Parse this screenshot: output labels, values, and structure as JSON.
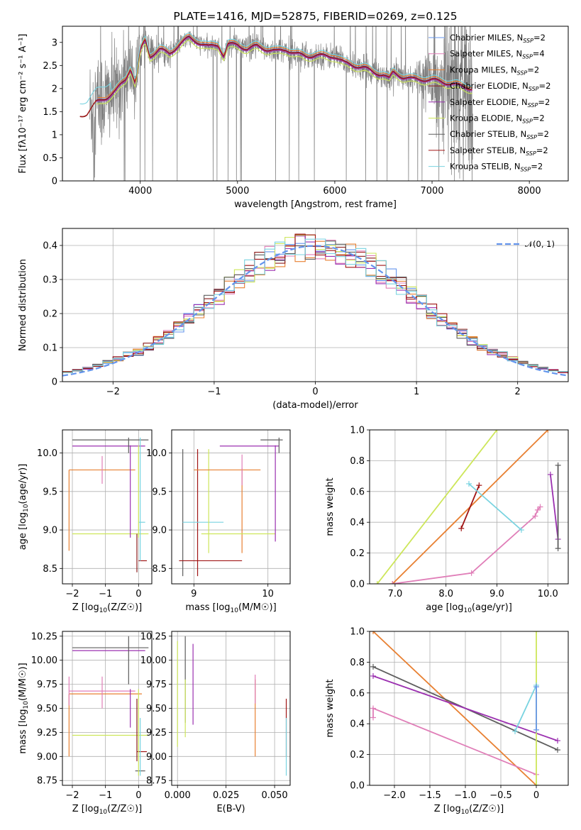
{
  "colors": {
    "Chabrier MILES": "#6495ed",
    "Salpeter MILES": "#e07eb8",
    "Kroupa MILES": "#e88032",
    "Chabrier ELODIE": "#8b1a1a",
    "Salpeter ELODIE": "#9b30b0",
    "Kroupa ELODIE": "#cde65a",
    "Chabrier STELIB": "#5e5e5e",
    "Salpeter STELIB": "#a01515",
    "Kroupa STELIB": "#78d3e0",
    "data": "#808080",
    "normal": "#6495ed",
    "grid": "#b0b0b0"
  },
  "chart_data": [
    {
      "type": "line",
      "title": "PLATE=1416, MJD=52875, FIBERID=0269, z=0.125",
      "xlabel": "wavelength [Angstrom, rest frame]",
      "ylabel": "Flux [fλ10⁻¹⁷ erg cm⁻² s⁻¹ A⁻¹]",
      "xlim": [
        3200,
        8400
      ],
      "ylim": [
        0,
        3.35
      ],
      "xticks": [
        4000,
        5000,
        6000,
        7000,
        8000
      ],
      "yticks": [
        0.0,
        0.5,
        1.0,
        1.5,
        2.0,
        2.5,
        3.0
      ],
      "grid": false,
      "legend_position": "top-right",
      "data_range": [
        3480,
        7420
      ],
      "model_curve": {
        "x": [
          3380,
          3450,
          3550,
          3650,
          3750,
          3850,
          3900,
          3950,
          3980,
          4000,
          4050,
          4100,
          4200,
          4300,
          4400,
          4500,
          4600,
          4700,
          4800,
          4860,
          4900,
          5000,
          5100,
          5200,
          5300,
          5400,
          5500,
          5600,
          5700,
          5800,
          5900,
          6000,
          6100,
          6200,
          6300,
          6400,
          6500,
          6560,
          6600,
          6700,
          6800,
          6900,
          7000,
          7100,
          7200,
          7300,
          7420
        ],
        "y": [
          1.4,
          1.45,
          1.7,
          1.8,
          1.95,
          2.2,
          2.45,
          2.1,
          2.55,
          2.8,
          3.05,
          2.7,
          2.85,
          2.75,
          2.95,
          3.1,
          3.0,
          2.9,
          2.95,
          2.7,
          2.95,
          2.95,
          2.85,
          2.92,
          2.85,
          2.8,
          2.85,
          2.75,
          2.7,
          2.72,
          2.7,
          2.7,
          2.55,
          2.5,
          2.45,
          2.35,
          2.3,
          2.2,
          2.35,
          2.25,
          2.2,
          2.2,
          2.18,
          2.15,
          2.1,
          2.05,
          2.0
        ]
      },
      "legend": [
        "Chabrier MILES, N_SSP=2",
        "Salpeter MILES, N_SSP=4",
        "Kroupa MILES, N_SSP=2",
        "Chabrier ELODIE, N_SSP=2",
        "Salpeter ELODIE, N_SSP=2",
        "Kroupa ELODIE, N_SSP=2",
        "Chabrier STELIB, N_SSP=2",
        "Salpeter STELIB, N_SSP=2",
        "Kroupa STELIB, N_SSP=2"
      ]
    },
    {
      "type": "line",
      "xlabel": "(data-model)/error",
      "ylabel": "Normed distribution",
      "xlim": [
        -2.5,
        2.5
      ],
      "ylim": [
        0,
        0.45
      ],
      "xticks": [
        -2,
        -1,
        0,
        1,
        2
      ],
      "yticks": [
        0.0,
        0.1,
        0.2,
        0.3,
        0.4
      ],
      "grid": true,
      "legend": [
        "𝒩(0, 1)"
      ],
      "legend_position": "top-right",
      "histogram_bin_width": 0.1,
      "normal_curve": {
        "mean": 0,
        "sigma": 1
      }
    },
    {
      "type": "scatter",
      "xlabel": "Z [log10(Z/Z☉)]",
      "ylabel": "age  [log10(age/yr)]",
      "xlim": [
        -2.3,
        0.4
      ],
      "ylim": [
        8.3,
        10.3
      ],
      "xticks": [
        -2,
        -1,
        0
      ],
      "yticks": [
        8.5,
        9.0,
        9.5,
        10.0
      ],
      "grid": true,
      "errorbars": [
        {
          "series": "Kroupa MILES",
          "x": -2.1,
          "xerr": [
            0,
            2.0
          ],
          "y": 9.78,
          "yerr": [
            1.05,
            0
          ]
        },
        {
          "series": "Salpeter MILES",
          "x": -1.1,
          "xerr": [
            0,
            0
          ],
          "y": 9.78,
          "yerr": [
            0.18,
            0.18
          ]
        },
        {
          "series": "Chabrier STELIB",
          "x": -2.0,
          "xerr": [
            0,
            2.3
          ],
          "y": 10.17,
          "yerr": [
            0,
            0
          ]
        },
        {
          "series": "Salpeter ELODIE",
          "x": -2.0,
          "xerr": [
            0,
            2.2
          ],
          "y": 10.09,
          "yerr": [
            0,
            0
          ]
        },
        {
          "series": "Kroupa ELODIE",
          "x": -2.0,
          "xerr": [
            0,
            2.3
          ],
          "y": 8.95,
          "yerr": [
            0,
            0
          ]
        },
        {
          "series": "Salpeter STELIB",
          "x": 0.0,
          "xerr": [
            0,
            0.25
          ],
          "y": 8.6,
          "yerr": [
            0,
            0
          ]
        },
        {
          "series": "Kroupa STELIB",
          "x": 0.0,
          "xerr": [
            0,
            0.2
          ],
          "y": 9.1,
          "yerr": [
            0,
            0
          ]
        },
        {
          "series": "Salpeter ELODIE",
          "x": -0.25,
          "xerr": [
            0,
            0
          ],
          "y": 9.4,
          "yerr": [
            0.5,
            0.7
          ]
        },
        {
          "series": "Chabrier STELIB",
          "x": -0.3,
          "xerr": [
            0,
            0
          ],
          "y": 10.1,
          "yerr": [
            0.1,
            0.1
          ]
        },
        {
          "series": "Kroupa ELODIE",
          "x": 0.0,
          "xerr": [
            0,
            0
          ],
          "y": 9.5,
          "yerr": [
            0.6,
            0.6
          ]
        },
        {
          "series": "Kroupa STELIB",
          "x": 0.05,
          "xerr": [
            0,
            0
          ],
          "y": 9.4,
          "yerr": [
            0.8,
            0.8
          ]
        },
        {
          "series": "Chabrier ELODIE",
          "x": -0.05,
          "xerr": [
            0,
            0
          ],
          "y": 8.7,
          "yerr": [
            0.25,
            0.25
          ]
        }
      ]
    },
    {
      "type": "scatter",
      "xlabel": "mass [log10(M/M☉)]",
      "xlim": [
        8.7,
        10.3
      ],
      "ylim": [
        8.3,
        10.3
      ],
      "xticks": [
        9,
        10
      ],
      "yticks": [
        8.5,
        9.0,
        9.5,
        10.0
      ],
      "grid": true,
      "errorbars": [
        {
          "series": "Chabrier STELIB",
          "x": 8.85,
          "xerr": [
            0,
            0
          ],
          "y": 9.2,
          "yerr": [
            0.8,
            0.85
          ]
        },
        {
          "series": "Salpeter STELIB",
          "x": 9.05,
          "xerr": [
            0,
            0
          ],
          "y": 9.2,
          "yerr": [
            0.8,
            0.85
          ]
        },
        {
          "series": "Salpeter STELIB",
          "x": 8.8,
          "xerr": [
            0,
            0.85
          ],
          "y": 8.6,
          "yerr": [
            0,
            0
          ]
        },
        {
          "series": "Kroupa STELIB",
          "x": 8.85,
          "xerr": [
            0,
            0.55
          ],
          "y": 9.1,
          "yerr": [
            0,
            0
          ]
        },
        {
          "series": "Kroupa ELODIE",
          "x": 9.2,
          "xerr": [
            0,
            0
          ],
          "y": 9.5,
          "yerr": [
            0.8,
            0.55
          ]
        },
        {
          "series": "Kroupa MILES",
          "x": 9.0,
          "xerr": [
            0,
            0.9
          ],
          "y": 9.78,
          "yerr": [
            0,
            0
          ]
        },
        {
          "series": "Kroupa MILES",
          "x": 9.65,
          "xerr": [
            0,
            0
          ],
          "y": 9.3,
          "yerr": [
            0.6,
            0.5
          ]
        },
        {
          "series": "Salpeter MILES",
          "x": 9.65,
          "xerr": [
            0,
            0
          ],
          "y": 9.78,
          "yerr": [
            0.2,
            0.2
          ]
        },
        {
          "series": "Kroupa ELODIE",
          "x": 9.1,
          "xerr": [
            0,
            1.0
          ],
          "y": 8.95,
          "yerr": [
            0,
            0
          ]
        },
        {
          "series": "Salpeter ELODIE",
          "x": 9.35,
          "xerr": [
            0,
            0.8
          ],
          "y": 10.09,
          "yerr": [
            0,
            0
          ]
        },
        {
          "series": "Salpeter ELODIE",
          "x": 10.1,
          "xerr": [
            0,
            0
          ],
          "y": 9.5,
          "yerr": [
            0.65,
            0.6
          ]
        },
        {
          "series": "Chabrier STELIB",
          "x": 9.9,
          "xerr": [
            0,
            0.3
          ],
          "y": 10.17,
          "yerr": [
            0,
            0
          ]
        },
        {
          "series": "Chabrier STELIB",
          "x": 10.15,
          "xerr": [
            0,
            0
          ],
          "y": 10.1,
          "yerr": [
            0.1,
            0.1
          ]
        }
      ]
    },
    {
      "type": "line",
      "xlabel": "age  [log10(age/yr)]",
      "ylabel": "mass weight",
      "xlim": [
        6.5,
        10.4
      ],
      "ylim": [
        0,
        1
      ],
      "xticks": [
        7,
        8,
        9,
        10
      ],
      "yticks": [
        0.0,
        0.2,
        0.4,
        0.6,
        0.8,
        1.0
      ],
      "grid": true,
      "series": [
        {
          "name": "Kroupa ELODIE",
          "x": [
            6.65,
            9.0
          ],
          "y": [
            0.0,
            1.0
          ]
        },
        {
          "name": "Kroupa MILES",
          "x": [
            6.95,
            10.0
          ],
          "y": [
            0.0,
            1.0
          ]
        },
        {
          "name": "Salpeter MILES",
          "x": [
            6.95,
            8.5,
            9.75,
            9.8,
            9.85
          ],
          "y": [
            0.0,
            0.07,
            0.44,
            0.48,
            0.5
          ]
        },
        {
          "name": "Salpeter STELIB",
          "x": [
            8.3,
            8.65
          ],
          "y": [
            0.36,
            0.64
          ]
        },
        {
          "name": "Kroupa STELIB",
          "x": [
            8.45,
            9.48
          ],
          "y": [
            0.65,
            0.35
          ]
        },
        {
          "name": "Salpeter ELODIE",
          "x": [
            10.05,
            10.2
          ],
          "y": [
            0.71,
            0.29
          ]
        },
        {
          "name": "Chabrier STELIB",
          "x": [
            10.2,
            10.2
          ],
          "y": [
            0.23,
            0.77
          ]
        }
      ]
    },
    {
      "type": "scatter",
      "xlabel": "Z [log10(Z/Z☉)]",
      "ylabel": "mass [log10(M/M☉)]",
      "xlim": [
        -2.3,
        0.4
      ],
      "ylim": [
        8.7,
        10.3
      ],
      "xticks": [
        -2,
        -1,
        0
      ],
      "yticks": [
        8.75,
        9.0,
        9.25,
        9.5,
        9.75,
        10.0,
        10.25
      ],
      "grid": true,
      "errorbars": [
        {
          "series": "Kroupa MILES",
          "x": -2.1,
          "xerr": [
            0,
            2.2
          ],
          "y": 9.65,
          "yerr": [
            0.65,
            0
          ]
        },
        {
          "series": "Salpeter MILES",
          "x": -2.1,
          "xerr": [
            0,
            2.0
          ],
          "y": 9.68,
          "yerr": [
            0.15,
            0.15
          ]
        },
        {
          "series": "Salpeter MILES",
          "x": -1.1,
          "xerr": [
            0,
            0
          ],
          "y": 9.68,
          "yerr": [
            0.18,
            0.15
          ]
        },
        {
          "series": "Chabrier STELIB",
          "x": -2.0,
          "xerr": [
            0,
            2.3
          ],
          "y": 10.13,
          "yerr": [
            0,
            0
          ]
        },
        {
          "series": "Salpeter ELODIE",
          "x": -2.0,
          "xerr": [
            0,
            2.2
          ],
          "y": 10.1,
          "yerr": [
            0,
            0
          ]
        },
        {
          "series": "Kroupa ELODIE",
          "x": -2.0,
          "xerr": [
            0,
            2.3
          ],
          "y": 9.22,
          "yerr": [
            0,
            0
          ]
        },
        {
          "series": "Chabrier STELIB",
          "x": -0.3,
          "xerr": [
            0,
            0
          ],
          "y": 10.0,
          "yerr": [
            0.25,
            0.25
          ]
        },
        {
          "series": "Salpeter ELODIE",
          "x": -0.25,
          "xerr": [
            0,
            0
          ],
          "y": 9.5,
          "yerr": [
            0.2,
            0.2
          ]
        },
        {
          "series": "Salpeter STELIB",
          "x": -0.05,
          "xerr": [
            0,
            0.3
          ],
          "y": 9.05,
          "yerr": [
            0,
            0
          ]
        },
        {
          "series": "Chabrier STELIB",
          "x": -0.1,
          "xerr": [
            0,
            0.3
          ],
          "y": 8.85,
          "yerr": [
            0,
            0
          ]
        },
        {
          "series": "Chabrier ELODIE",
          "x": -0.05,
          "xerr": [
            0,
            0
          ],
          "y": 9.3,
          "yerr": [
            0.35,
            0.3
          ]
        },
        {
          "series": "Kroupa STELIB",
          "x": 0.05,
          "xerr": [
            0,
            0
          ],
          "y": 9.1,
          "yerr": [
            0.3,
            0.3
          ]
        },
        {
          "series": "Kroupa ELODIE",
          "x": 0.0,
          "xerr": [
            0,
            0
          ],
          "y": 9.3,
          "yerr": [
            0.5,
            0.4
          ]
        }
      ]
    },
    {
      "type": "scatter",
      "xlabel": "E(B-V)",
      "xlim": [
        -0.003,
        0.058
      ],
      "ylim": [
        8.7,
        10.3
      ],
      "xticks": [
        0.0,
        0.025,
        0.05
      ],
      "yticks": [
        8.75,
        9.0,
        9.25,
        9.5,
        9.75,
        10.0,
        10.25
      ],
      "grid": true,
      "errorbars": [
        {
          "series": "Kroupa ELODIE",
          "x": 0.0,
          "y": 9.65,
          "yerr": [
            0.55,
            0.55
          ]
        },
        {
          "series": "Chabrier STELIB",
          "x": 0.004,
          "y": 9.8,
          "yerr": [
            0.45,
            0.45
          ]
        },
        {
          "series": "Kroupa ELODIE",
          "x": 0.004,
          "y": 9.5,
          "yerr": [
            0.3,
            0.3
          ]
        },
        {
          "series": "Salpeter ELODIE",
          "x": 0.008,
          "y": 9.75,
          "yerr": [
            0.42,
            0.42
          ]
        },
        {
          "series": "Kroupa MILES",
          "x": 0.04,
          "y": 9.4,
          "yerr": [
            0.4,
            0.4
          ]
        },
        {
          "series": "Salpeter MILES",
          "x": 0.04,
          "y": 9.7,
          "yerr": [
            0.15,
            0.15
          ]
        },
        {
          "series": "Salpeter STELIB",
          "x": 0.056,
          "y": 9.3,
          "yerr": [
            0.3,
            0.3
          ]
        },
        {
          "series": "Kroupa STELIB",
          "x": 0.056,
          "y": 9.1,
          "yerr": [
            0.3,
            0.3
          ]
        }
      ]
    },
    {
      "type": "line",
      "xlabel": "Z [log10(Z/Z☉)]",
      "ylabel": "mass weight",
      "xlim": [
        -2.35,
        0.45
      ],
      "ylim": [
        0,
        1
      ],
      "xticks": [
        -2.0,
        -1.5,
        -1.0,
        -0.5,
        0.0
      ],
      "yticks": [
        0.0,
        0.2,
        0.4,
        0.6,
        0.8,
        1.0
      ],
      "grid": true,
      "series": [
        {
          "name": "Kroupa MILES",
          "x": [
            -2.3,
            0.0
          ],
          "y": [
            1.0,
            0.0
          ]
        },
        {
          "name": "Chabrier STELIB",
          "x": [
            -2.3,
            0.3
          ],
          "y": [
            0.77,
            0.23
          ]
        },
        {
          "name": "Salpeter ELODIE",
          "x": [
            -2.3,
            0.3
          ],
          "y": [
            0.71,
            0.29
          ]
        },
        {
          "name": "Salpeter MILES",
          "x": [
            -2.3,
            -2.3,
            0.0
          ],
          "y": [
            0.44,
            0.5,
            0.07
          ]
        },
        {
          "name": "Kroupa ELODIE",
          "x": [
            0.0,
            0.0
          ],
          "y": [
            0.0,
            1.0
          ]
        },
        {
          "name": "Kroupa STELIB",
          "x": [
            -0.3,
            0.0
          ],
          "y": [
            0.35,
            0.65
          ]
        },
        {
          "name": "Chabrier MILES",
          "x": [
            0.0,
            0.0
          ],
          "y": [
            0.36,
            0.64
          ]
        }
      ]
    }
  ]
}
